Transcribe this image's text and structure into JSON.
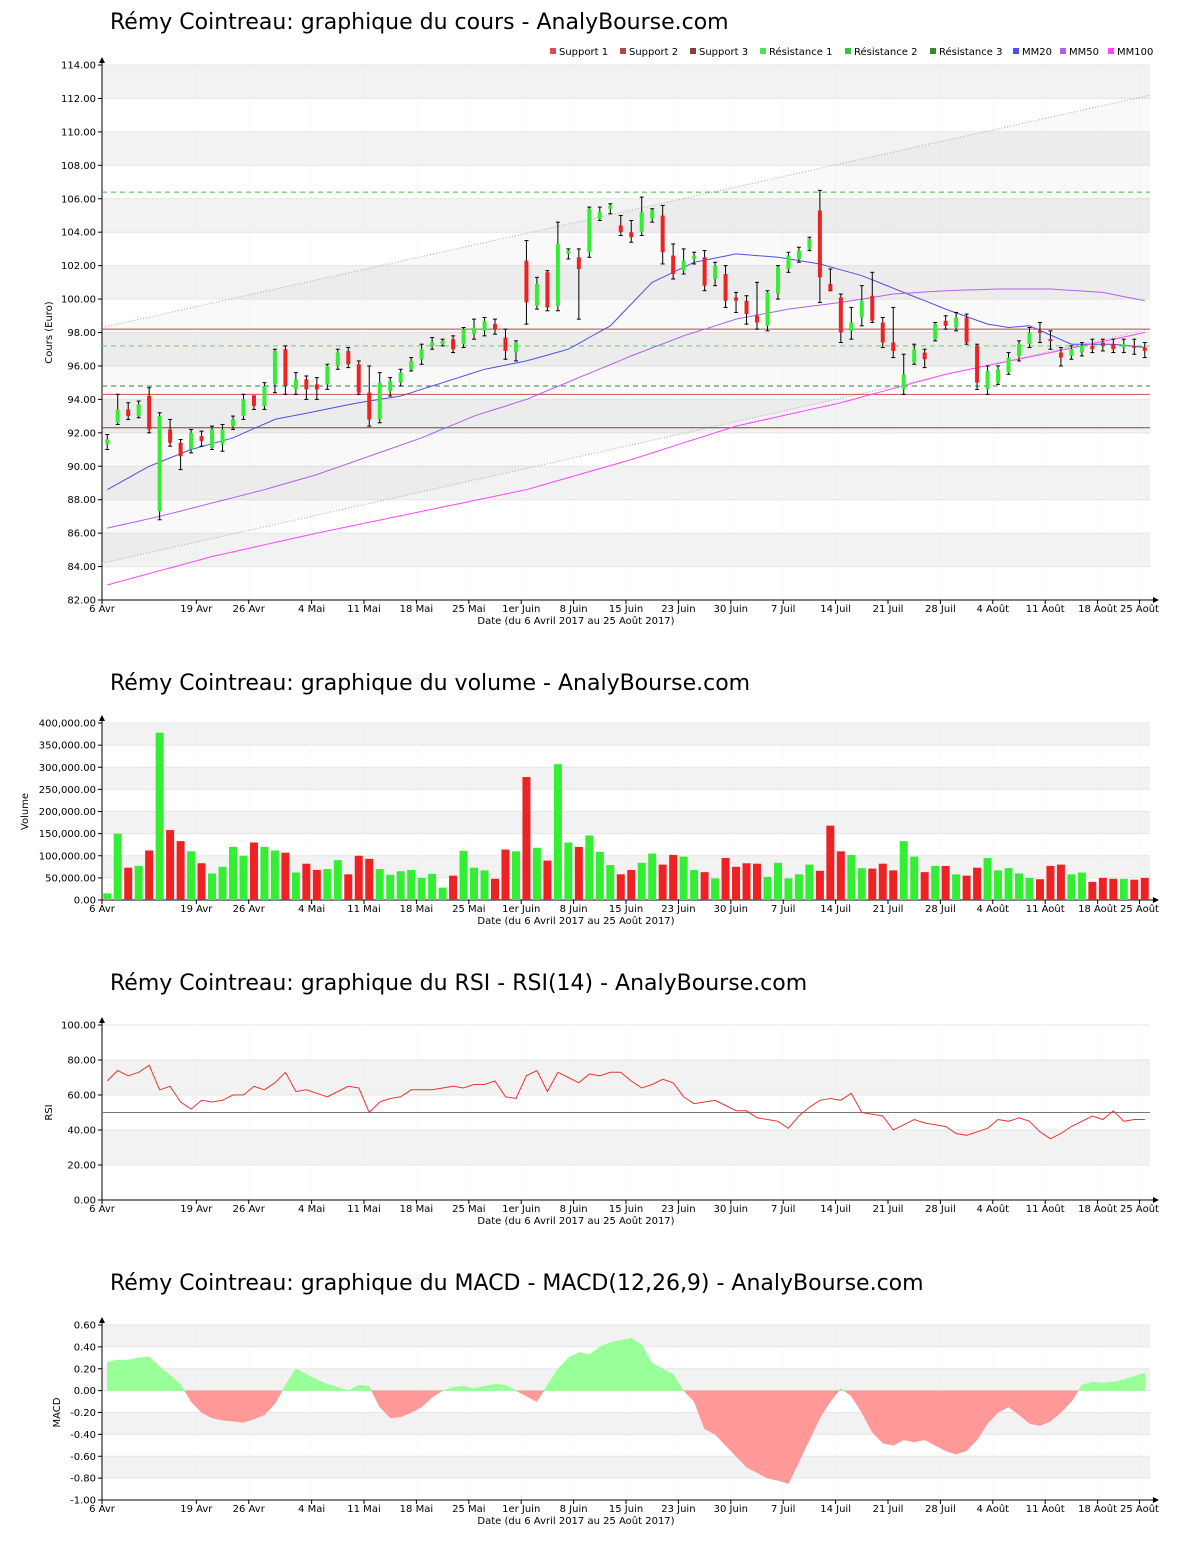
{
  "colors": {
    "up": "#33ee33",
    "down": "#ee2222",
    "support1": "#d25050",
    "support2": "#b04848",
    "support3": "#8a3c3c",
    "resistance1": "#55dd55",
    "resistance2": "#44bb44",
    "resistance3": "#338833",
    "mm20": "#5050e0",
    "mm50": "#b060f0",
    "mm100": "#ff44ff",
    "rsi": "#ee3333",
    "macd_pos": "#99ff99",
    "macd_neg": "#ff9999"
  },
  "date_axis": {
    "labels": [
      "6 Avr",
      "19 Avr",
      "26 Avr",
      "4 Mai",
      "11 Mai",
      "18 Mai",
      "25 Mai",
      "1er Juin",
      "8 Juin",
      "15 Juin",
      "23 Juin",
      "30 Juin",
      "7 Juil",
      "14 Juil",
      "21 Juil",
      "28 Juil",
      "4 Août",
      "11 Août",
      "18 Août",
      "25 Août"
    ],
    "label_index": [
      0,
      9,
      14,
      20,
      25,
      30,
      35,
      40,
      45,
      50,
      55,
      60,
      65,
      70,
      75,
      80,
      85,
      90,
      95,
      99
    ],
    "caption": "Date (du 6 Avril 2017 au 25 Août 2017)"
  },
  "price_panel": {
    "title": "Rémy Cointreau: graphique du cours - AnalyBourse.com",
    "ylabel": "Cours (Euro)",
    "legend": [
      "Support 1",
      "Support 2",
      "Support 3",
      "Résistance 1",
      "Résistance 2",
      "Résistance 3",
      "MM20",
      "MM50",
      "MM100"
    ]
  },
  "volume_panel": {
    "title": "Rémy Cointreau: graphique du volume - AnalyBourse.com",
    "ylabel": "Volume"
  },
  "rsi_panel": {
    "title": "Rémy Cointreau: graphique du RSI - RSI(14) - AnalyBourse.com",
    "ylabel": "RSI"
  },
  "macd_panel": {
    "title": "Rémy Cointreau: graphique du MACD - MACD(12,26,9) - AnalyBourse.com",
    "ylabel": "MACD"
  },
  "chart_data": [
    {
      "type": "candlestick",
      "title": "Rémy Cointreau: graphique du cours - AnalyBourse.com",
      "xlabel": "Date (du 6 Avril 2017 au 25 Août 2017)",
      "ylabel": "Cours (Euro)",
      "ylim": [
        82,
        114
      ],
      "yticks": [
        82,
        84,
        86,
        88,
        90,
        92,
        94,
        96,
        98,
        100,
        102,
        104,
        106,
        108,
        110,
        112,
        114
      ],
      "n_sessions": 100,
      "ohlc": [
        [
          91.3,
          91.9,
          91.0,
          91.6
        ],
        [
          92.6,
          94.3,
          92.5,
          93.4
        ],
        [
          93.4,
          93.8,
          92.8,
          93.0
        ],
        [
          93.0,
          93.9,
          92.9,
          93.7
        ],
        [
          94.2,
          94.7,
          92.0,
          92.2
        ],
        [
          87.3,
          93.2,
          86.8,
          93.0
        ],
        [
          92.2,
          92.8,
          91.2,
          91.4
        ],
        [
          91.4,
          91.6,
          89.8,
          90.6
        ],
        [
          91.0,
          92.2,
          90.8,
          92.0
        ],
        [
          91.8,
          92.1,
          91.2,
          91.5
        ],
        [
          91.1,
          92.4,
          91.0,
          92.2
        ],
        [
          91.3,
          92.5,
          90.9,
          92.2
        ],
        [
          92.4,
          93.0,
          92.2,
          92.8
        ],
        [
          93.0,
          94.3,
          92.8,
          94.0
        ],
        [
          94.2,
          94.2,
          93.4,
          93.6
        ],
        [
          93.6,
          95.0,
          93.4,
          94.8
        ],
        [
          94.9,
          97.0,
          94.4,
          96.9
        ],
        [
          97.0,
          97.2,
          94.3,
          94.8
        ],
        [
          94.6,
          95.6,
          94.3,
          95.2
        ],
        [
          95.2,
          95.4,
          94.0,
          94.6
        ],
        [
          94.9,
          95.3,
          94.0,
          94.6
        ],
        [
          94.9,
          96.1,
          94.6,
          96.0
        ],
        [
          96.0,
          97.0,
          95.8,
          96.8
        ],
        [
          96.9,
          97.1,
          95.9,
          96.1
        ],
        [
          96.1,
          96.3,
          94.3,
          94.4
        ],
        [
          94.4,
          96.0,
          92.4,
          92.8
        ],
        [
          92.8,
          95.6,
          92.6,
          95.0
        ],
        [
          94.5,
          95.3,
          94.2,
          95.1
        ],
        [
          95.0,
          95.8,
          94.8,
          95.6
        ],
        [
          95.8,
          96.5,
          95.7,
          96.3
        ],
        [
          96.4,
          97.3,
          96.1,
          97.0
        ],
        [
          97.2,
          97.7,
          97.0,
          97.4
        ],
        [
          97.3,
          97.6,
          97.2,
          97.5
        ],
        [
          97.6,
          97.8,
          96.8,
          97.0
        ],
        [
          97.3,
          98.3,
          97.1,
          98.2
        ],
        [
          97.9,
          98.8,
          97.6,
          98.3
        ],
        [
          98.1,
          98.9,
          97.8,
          98.7
        ],
        [
          98.5,
          98.8,
          97.9,
          98.2
        ],
        [
          97.7,
          98.2,
          96.4,
          96.9
        ],
        [
          96.8,
          97.5,
          96.3,
          97.4
        ],
        [
          102.3,
          103.5,
          98.5,
          99.8
        ],
        [
          99.6,
          101.3,
          99.4,
          100.9
        ],
        [
          101.6,
          101.7,
          99.3,
          99.5
        ],
        [
          99.6,
          104.6,
          99.3,
          103.3
        ],
        [
          102.7,
          103.0,
          102.4,
          102.9
        ],
        [
          102.5,
          103.0,
          98.8,
          101.8
        ],
        [
          102.8,
          105.5,
          102.5,
          105.4
        ],
        [
          104.8,
          105.5,
          104.7,
          105.2
        ],
        [
          105.4,
          105.7,
          105.1,
          105.6
        ],
        [
          104.4,
          105.0,
          103.8,
          104.0
        ],
        [
          104.0,
          104.7,
          103.4,
          103.7
        ],
        [
          104.0,
          106.1,
          103.8,
          105.2
        ],
        [
          104.8,
          105.4,
          104.6,
          105.3
        ],
        [
          105.0,
          105.6,
          102.1,
          102.8
        ],
        [
          102.6,
          103.3,
          101.2,
          101.5
        ],
        [
          101.7,
          103.0,
          101.5,
          102.3
        ],
        [
          102.4,
          102.8,
          102.1,
          102.6
        ],
        [
          102.5,
          102.9,
          100.5,
          100.8
        ],
        [
          101.2,
          102.2,
          100.8,
          102.0
        ],
        [
          101.5,
          102.0,
          99.5,
          99.9
        ],
        [
          100.1,
          100.4,
          99.2,
          99.9
        ],
        [
          99.9,
          100.2,
          98.5,
          99.1
        ],
        [
          99.0,
          101.0,
          98.2,
          98.6
        ],
        [
          98.4,
          100.5,
          98.1,
          100.4
        ],
        [
          100.3,
          102.0,
          100.0,
          101.9
        ],
        [
          101.8,
          102.8,
          101.6,
          102.6
        ],
        [
          102.4,
          103.1,
          102.2,
          102.9
        ],
        [
          103.0,
          103.7,
          102.9,
          103.6
        ],
        [
          105.3,
          106.5,
          99.8,
          101.3
        ],
        [
          100.9,
          101.8,
          100.5,
          100.5
        ],
        [
          100.1,
          100.3,
          97.4,
          98.0
        ],
        [
          98.1,
          99.5,
          97.6,
          98.6
        ],
        [
          98.9,
          100.8,
          98.4,
          99.9
        ],
        [
          100.2,
          101.6,
          98.6,
          98.7
        ],
        [
          98.6,
          98.9,
          97.1,
          97.4
        ],
        [
          97.4,
          99.5,
          96.5,
          96.9
        ],
        [
          94.6,
          96.7,
          94.3,
          95.5
        ],
        [
          96.2,
          97.3,
          96.1,
          97.0
        ],
        [
          96.8,
          97.0,
          95.9,
          96.4
        ],
        [
          97.6,
          98.6,
          97.5,
          98.5
        ],
        [
          98.7,
          99.0,
          98.2,
          98.4
        ],
        [
          98.3,
          99.2,
          98.1,
          98.9
        ],
        [
          98.9,
          99.1,
          97.3,
          97.4
        ],
        [
          97.2,
          97.3,
          94.6,
          95.0
        ],
        [
          94.6,
          96.0,
          94.3,
          95.7
        ],
        [
          95.0,
          96.0,
          94.9,
          95.8
        ],
        [
          95.6,
          96.8,
          95.5,
          96.5
        ],
        [
          96.6,
          97.5,
          96.3,
          97.3
        ],
        [
          97.3,
          98.3,
          97.1,
          98.0
        ],
        [
          98.1,
          98.6,
          97.4,
          98.0
        ],
        [
          97.6,
          98.1,
          97.0,
          97.5
        ],
        [
          96.8,
          97.1,
          96.0,
          96.5
        ],
        [
          96.6,
          97.2,
          96.4,
          97.0
        ],
        [
          96.8,
          97.4,
          96.6,
          97.2
        ],
        [
          97.2,
          97.6,
          96.8,
          97.0
        ],
        [
          97.4,
          97.6,
          96.9,
          97.2
        ],
        [
          97.3,
          97.6,
          96.8,
          97.0
        ],
        [
          97.1,
          97.6,
          96.8,
          97.3
        ],
        [
          97.2,
          97.6,
          96.7,
          97.1
        ],
        [
          97.1,
          97.4,
          96.5,
          96.9
        ]
      ],
      "support_levels": {
        "Support 1": 94.3,
        "Support 2": 98.2,
        "Support 3": 92.3
      },
      "resistance_levels": {
        "Résistance 1": 97.2,
        "Résistance 2": 106.4,
        "Résistance 3": 94.8
      },
      "trend_channel": {
        "upper": [
          98.3,
          112.2
        ],
        "lower": [
          84.2,
          98.2
        ]
      },
      "mm20_anchors": [
        [
          0,
          88.6
        ],
        [
          4,
          90.0
        ],
        [
          8,
          91.0
        ],
        [
          12,
          91.7
        ],
        [
          16,
          92.8
        ],
        [
          20,
          93.3
        ],
        [
          24,
          93.8
        ],
        [
          28,
          94.2
        ],
        [
          32,
          95.0
        ],
        [
          36,
          95.8
        ],
        [
          40,
          96.3
        ],
        [
          44,
          97.0
        ],
        [
          48,
          98.4
        ],
        [
          52,
          101.0
        ],
        [
          56,
          102.2
        ],
        [
          60,
          102.7
        ],
        [
          64,
          102.5
        ],
        [
          68,
          102.1
        ],
        [
          72,
          101.4
        ],
        [
          76,
          100.4
        ],
        [
          80,
          99.4
        ],
        [
          84,
          98.5
        ],
        [
          86,
          98.3
        ],
        [
          88,
          98.4
        ],
        [
          92,
          97.3
        ],
        [
          96,
          97.3
        ],
        [
          99,
          97.1
        ]
      ],
      "mm50_anchors": [
        [
          0,
          86.3
        ],
        [
          5,
          87.0
        ],
        [
          10,
          87.8
        ],
        [
          15,
          88.6
        ],
        [
          20,
          89.5
        ],
        [
          25,
          90.6
        ],
        [
          30,
          91.7
        ],
        [
          35,
          93.0
        ],
        [
          40,
          94.0
        ],
        [
          45,
          95.3
        ],
        [
          50,
          96.6
        ],
        [
          55,
          97.8
        ],
        [
          60,
          98.8
        ],
        [
          65,
          99.4
        ],
        [
          70,
          99.8
        ],
        [
          75,
          100.3
        ],
        [
          80,
          100.5
        ],
        [
          85,
          100.6
        ],
        [
          90,
          100.6
        ],
        [
          95,
          100.4
        ],
        [
          99,
          99.9
        ]
      ],
      "mm100_anchors": [
        [
          0,
          82.9
        ],
        [
          10,
          84.6
        ],
        [
          20,
          86.0
        ],
        [
          30,
          87.3
        ],
        [
          40,
          88.6
        ],
        [
          50,
          90.4
        ],
        [
          60,
          92.4
        ],
        [
          70,
          93.8
        ],
        [
          80,
          95.5
        ],
        [
          90,
          96.8
        ],
        [
          99,
          98.0
        ]
      ]
    },
    {
      "type": "bar",
      "title": "Rémy Cointreau: graphique du volume - AnalyBourse.com",
      "xlabel": "Date (du 6 Avril 2017 au 25 Août 2017)",
      "ylabel": "Volume",
      "ylim": [
        0,
        400000
      ],
      "yticks": [
        0,
        50000,
        100000,
        150000,
        200000,
        250000,
        300000,
        350000,
        400000
      ],
      "ytick_labels": [
        "0.00",
        "50,000.00",
        "100,000.00",
        "150,000.00",
        "200,000.00",
        "250,000.00",
        "300,000.00",
        "350,000.00",
        "400,000.00"
      ],
      "values": [
        15000,
        150000,
        73000,
        77000,
        112000,
        378000,
        158000,
        133000,
        110000,
        83000,
        60000,
        75000,
        120000,
        100000,
        130000,
        120000,
        112000,
        107000,
        62000,
        82000,
        68000,
        70000,
        90000,
        58000,
        100000,
        93000,
        70000,
        57000,
        65000,
        68000,
        50000,
        59000,
        28000,
        55000,
        111000,
        73000,
        67000,
        48000,
        114000,
        110000,
        278000,
        118000,
        89000,
        307000,
        130000,
        120000,
        146000,
        109000,
        79000,
        58000,
        68000,
        84000,
        105000,
        80000,
        102000,
        98000,
        68000,
        63000,
        49000,
        95000,
        75000,
        83000,
        82000,
        52000,
        84000,
        49000,
        58000,
        80000,
        66000,
        168000,
        110000,
        102000,
        72000,
        71000,
        82000,
        67000,
        133000,
        98000,
        63000,
        77000,
        77000,
        58000,
        55000,
        73000,
        95000,
        67000,
        72000,
        60000,
        50000,
        47000,
        77000,
        80000,
        58000,
        62000,
        41000,
        50000,
        48000,
        48000,
        46000,
        50000
      ]
    },
    {
      "type": "line",
      "title": "Rémy Cointreau: graphique du RSI - RSI(14) - AnalyBourse.com",
      "xlabel": "Date (du 6 Avril 2017 au 25 Août 2017)",
      "ylabel": "RSI",
      "ylim": [
        0,
        100
      ],
      "yticks": [
        0,
        20,
        40,
        60,
        80,
        100
      ],
      "reference_line": 50,
      "values": [
        68,
        74,
        71,
        73,
        77,
        63,
        65,
        56,
        52,
        57,
        56,
        57,
        60,
        60,
        65,
        63,
        67,
        73,
        62,
        63,
        61,
        59,
        62,
        65,
        64,
        50,
        56,
        58,
        59,
        63,
        63,
        63,
        64,
        65,
        64,
        66,
        66,
        68,
        59,
        58,
        71,
        74,
        62,
        73,
        70,
        67,
        72,
        71,
        73,
        73,
        68,
        64,
        66,
        69,
        67,
        59,
        55,
        56,
        57,
        54,
        51,
        51,
        47,
        46,
        45,
        41,
        48,
        53,
        57,
        58,
        57,
        61,
        50,
        49,
        48,
        40,
        43,
        46,
        44,
        43,
        42,
        38,
        37,
        39,
        41,
        46,
        45,
        47,
        45,
        39,
        35,
        38,
        42,
        45,
        48,
        46,
        51,
        45,
        46,
        46
      ]
    },
    {
      "type": "area",
      "title": "Rémy Cointreau: graphique du MACD - MACD(12,26,9) - AnalyBourse.com",
      "xlabel": "Date (du 6 Avril 2017 au 25 Août 2017)",
      "ylabel": "MACD",
      "ylim": [
        -1.0,
        0.6
      ],
      "yticks": [
        -1.0,
        -0.8,
        -0.6,
        -0.4,
        -0.2,
        0.0,
        0.2,
        0.4,
        0.6
      ],
      "values": [
        0.26,
        0.28,
        0.28,
        0.3,
        0.31,
        0.22,
        0.14,
        0.06,
        -0.1,
        -0.2,
        -0.25,
        -0.27,
        -0.28,
        -0.29,
        -0.26,
        -0.22,
        -0.12,
        0.05,
        0.2,
        0.15,
        0.1,
        0.06,
        0.03,
        0.0,
        0.05,
        0.04,
        -0.15,
        -0.25,
        -0.24,
        -0.2,
        -0.15,
        -0.06,
        0.0,
        0.03,
        0.04,
        0.02,
        0.04,
        0.06,
        0.05,
        0.0,
        -0.05,
        -0.1,
        0.05,
        0.2,
        0.3,
        0.35,
        0.33,
        0.4,
        0.44,
        0.46,
        0.48,
        0.42,
        0.25,
        0.2,
        0.15,
        0.0,
        -0.1,
        -0.35,
        -0.4,
        -0.5,
        -0.6,
        -0.7,
        -0.75,
        -0.8,
        -0.82,
        -0.85,
        -0.65,
        -0.45,
        -0.25,
        -0.1,
        0.02,
        -0.05,
        -0.2,
        -0.38,
        -0.48,
        -0.5,
        -0.45,
        -0.47,
        -0.45,
        -0.5,
        -0.55,
        -0.58,
        -0.55,
        -0.45,
        -0.3,
        -0.2,
        -0.15,
        -0.22,
        -0.3,
        -0.32,
        -0.28,
        -0.2,
        -0.1,
        0.05,
        0.08,
        0.07,
        0.08,
        0.1,
        0.13,
        0.16
      ]
    }
  ]
}
